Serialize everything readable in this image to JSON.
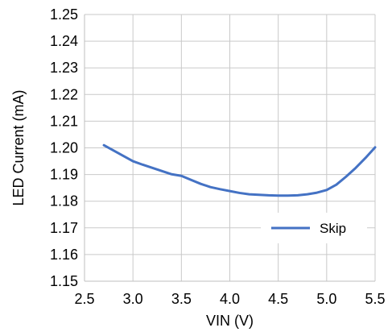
{
  "chart_data": {
    "type": "line",
    "title": "",
    "xlabel": "VIN (V)",
    "ylabel": "LED Current (mA)",
    "xlim": [
      2.5,
      5.5
    ],
    "ylim": [
      1.15,
      1.25
    ],
    "x_ticks": [
      2.5,
      3.0,
      3.5,
      4.0,
      4.5,
      5.0,
      5.5
    ],
    "x_tick_labels": [
      "2.5",
      "3.0",
      "3.5",
      "4.0",
      "4.5",
      "5.0",
      "5.5"
    ],
    "y_ticks": [
      1.15,
      1.16,
      1.17,
      1.18,
      1.19,
      1.2,
      1.21,
      1.22,
      1.23,
      1.24,
      1.25
    ],
    "y_tick_labels": [
      "1.15",
      "1.16",
      "1.17",
      "1.18",
      "1.19",
      "1.20",
      "1.21",
      "1.22",
      "1.23",
      "1.24",
      "1.25"
    ],
    "grid": true,
    "legend_position": "bottom-right",
    "series": [
      {
        "name": "Skip",
        "color": "#4472C4",
        "x": [
          2.7,
          2.8,
          2.9,
          3.0,
          3.1,
          3.2,
          3.3,
          3.4,
          3.5,
          3.6,
          3.7,
          3.8,
          3.9,
          4.0,
          4.1,
          4.2,
          4.3,
          4.4,
          4.5,
          4.6,
          4.7,
          4.8,
          4.9,
          5.0,
          5.1,
          5.2,
          5.3,
          5.4,
          5.5
        ],
        "y": [
          1.201,
          1.199,
          1.197,
          1.195,
          1.1937,
          1.1925,
          1.1913,
          1.1901,
          1.1895,
          1.188,
          1.1865,
          1.1853,
          1.1845,
          1.1838,
          1.1831,
          1.1826,
          1.1824,
          1.1822,
          1.1821,
          1.1821,
          1.1822,
          1.1826,
          1.1832,
          1.1842,
          1.1862,
          1.1892,
          1.1925,
          1.1962,
          1.2002
        ]
      }
    ]
  }
}
